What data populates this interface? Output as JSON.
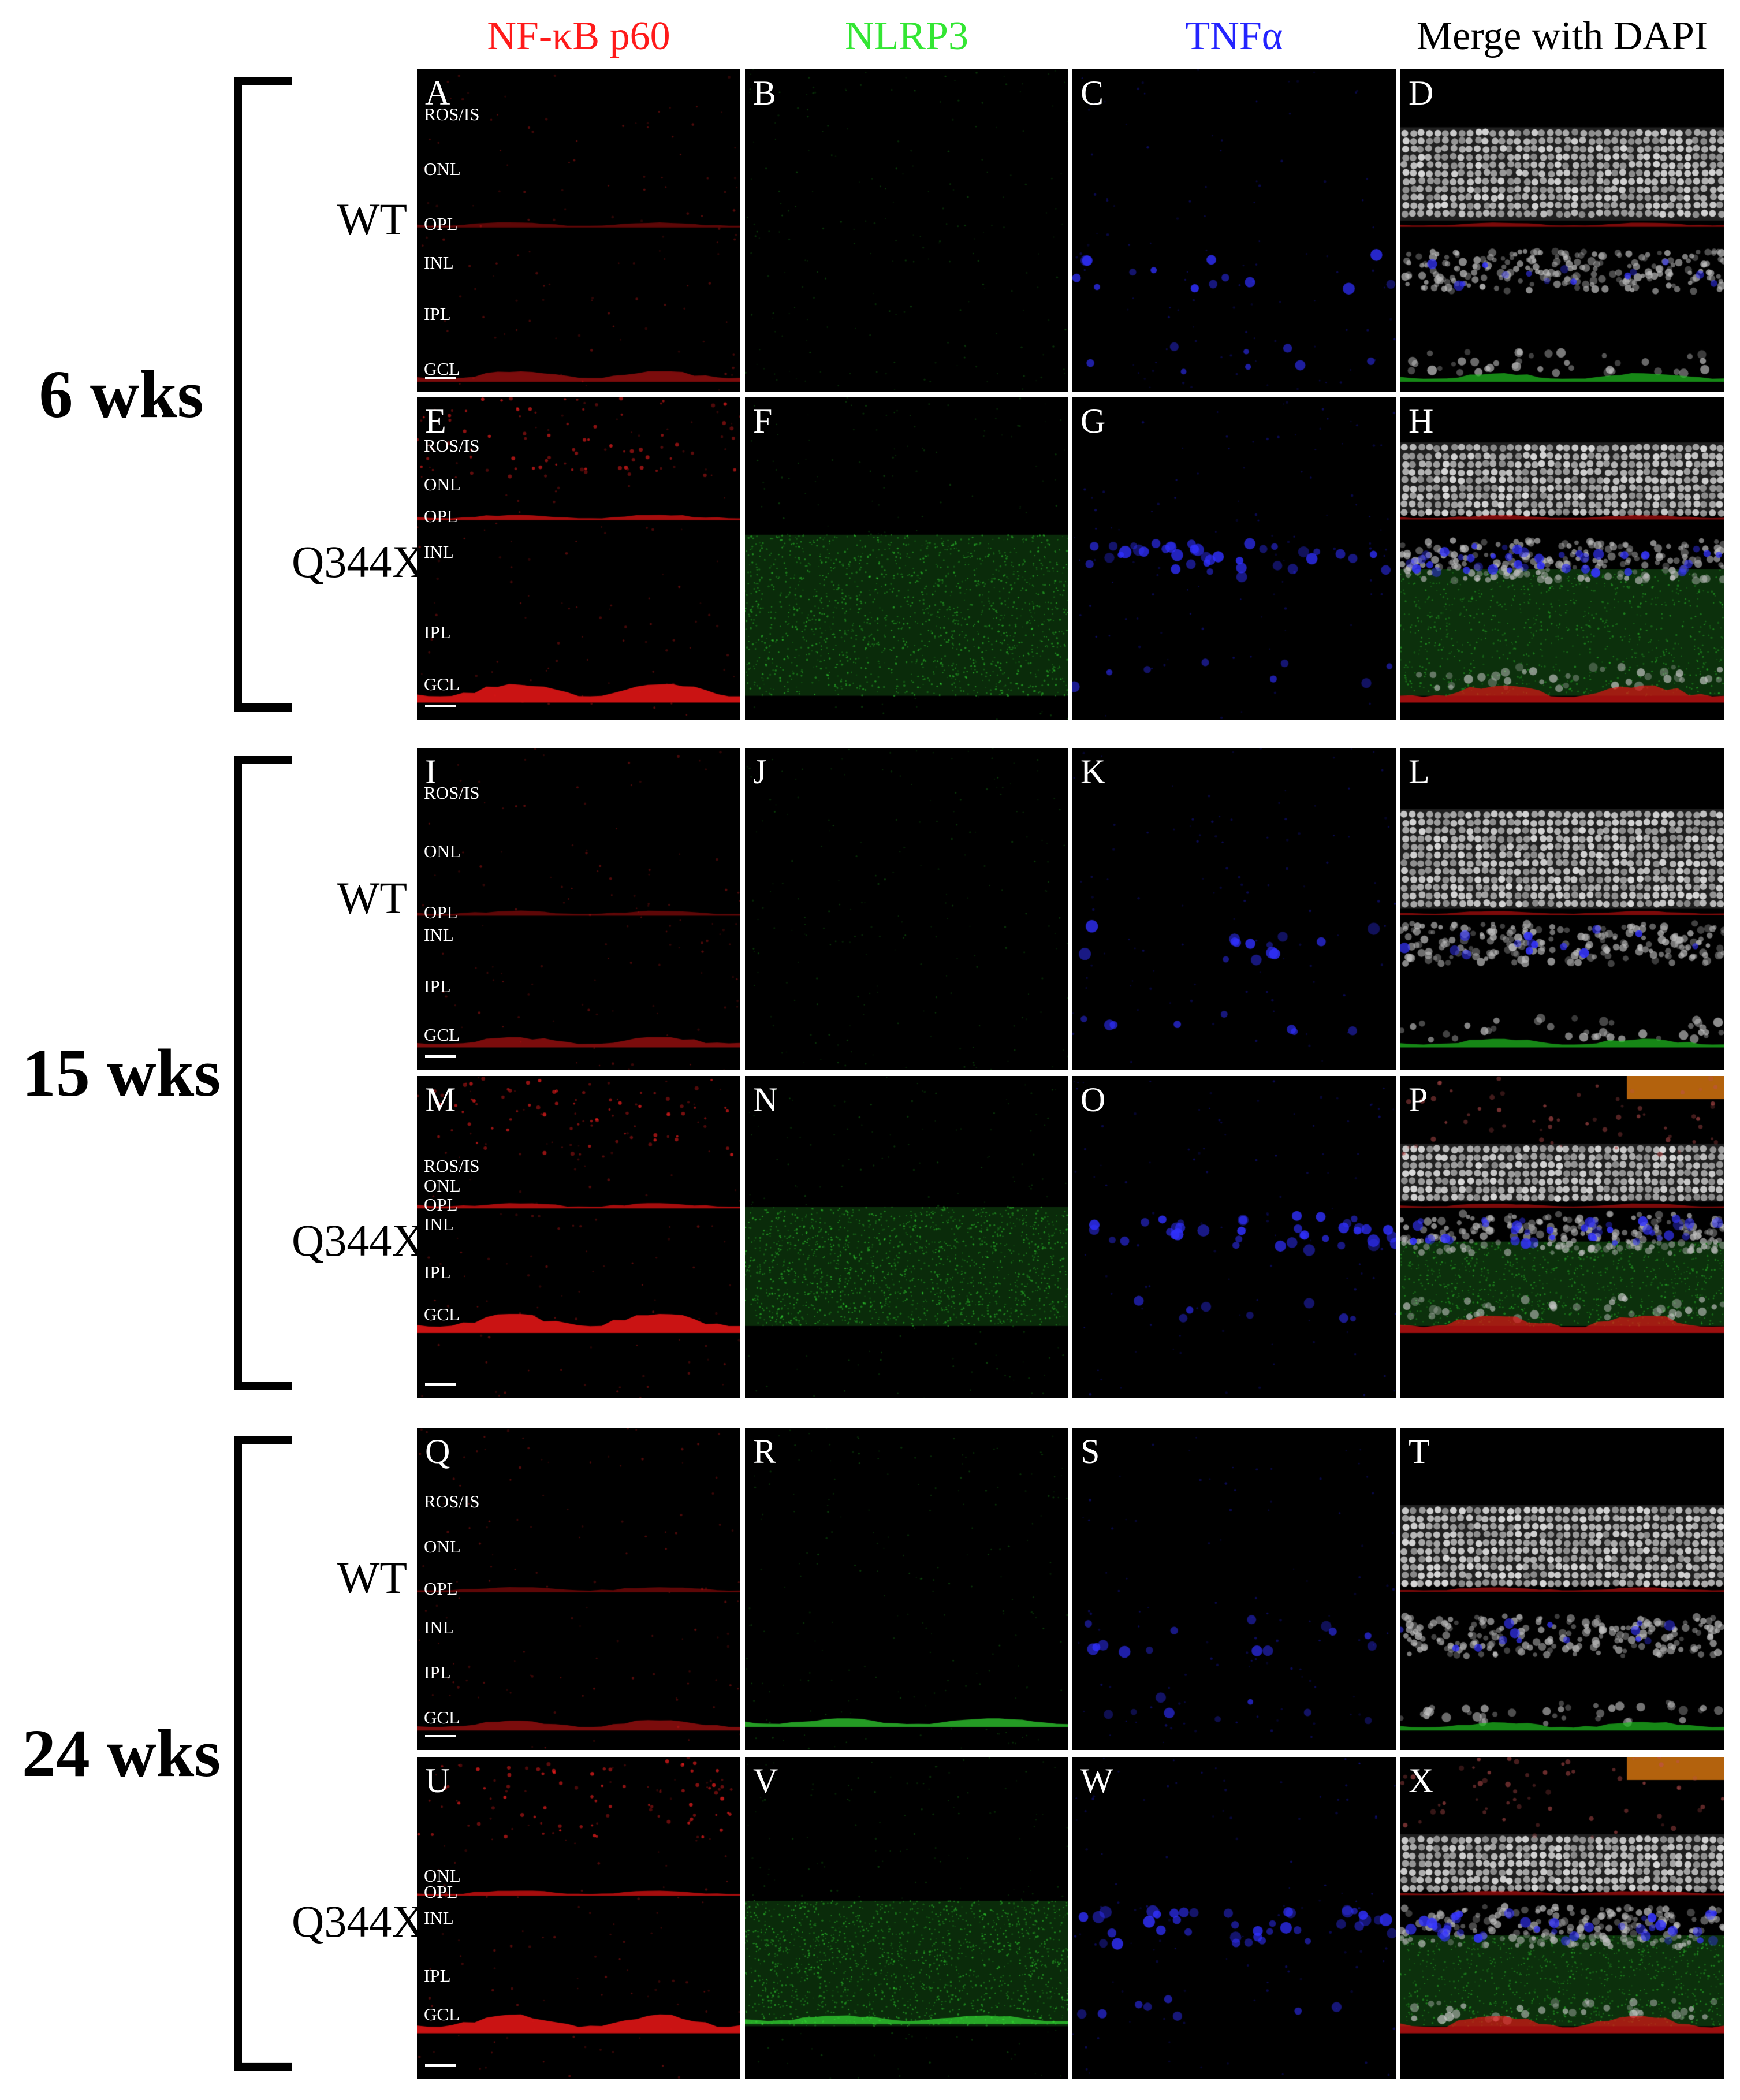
{
  "columns": [
    {
      "label": "NF-κB p60",
      "color": "#ff1a1a"
    },
    {
      "label": "NLRP3",
      "color": "#33e633"
    },
    {
      "label": "TNFα",
      "color": "#2424ff"
    },
    {
      "label": "Merge with DAPI",
      "color": "#000000"
    }
  ],
  "time_groups": [
    {
      "label": "6 wks",
      "rows": [
        {
          "label": "WT",
          "layers": [
            {
              "name": "ROS/IS",
              "pos": 0.14
            },
            {
              "name": "ONL",
              "pos": 0.31
            },
            {
              "name": "OPL",
              "pos": 0.48
            },
            {
              "name": "INL",
              "pos": 0.6
            },
            {
              "name": "IPL",
              "pos": 0.76
            },
            {
              "name": "GCL",
              "pos": 0.93
            }
          ],
          "panels": [
            "A",
            "B",
            "C",
            "D"
          ]
        },
        {
          "label": "Q344X",
          "layers": [
            {
              "name": "ROS/IS",
              "pos": 0.15
            },
            {
              "name": "ONL",
              "pos": 0.27
            },
            {
              "name": "OPL",
              "pos": 0.37
            },
            {
              "name": "INL",
              "pos": 0.48
            },
            {
              "name": "IPL",
              "pos": 0.73
            },
            {
              "name": "GCL",
              "pos": 0.89
            }
          ],
          "panels": [
            "E",
            "F",
            "G",
            "H"
          ]
        }
      ]
    },
    {
      "label": "15 wks",
      "rows": [
        {
          "label": "WT",
          "layers": [
            {
              "name": "ROS/IS",
              "pos": 0.14
            },
            {
              "name": "ONL",
              "pos": 0.32
            },
            {
              "name": "OPL",
              "pos": 0.51
            },
            {
              "name": "INL",
              "pos": 0.58
            },
            {
              "name": "IPL",
              "pos": 0.74
            },
            {
              "name": "GCL",
              "pos": 0.89
            }
          ],
          "panels": [
            "I",
            "J",
            "K",
            "L"
          ]
        },
        {
          "label": "Q344X",
          "layers": [
            {
              "name": "ROS/IS",
              "pos": 0.28
            },
            {
              "name": "ONL",
              "pos": 0.34
            },
            {
              "name": "OPL",
              "pos": 0.4
            },
            {
              "name": "INL",
              "pos": 0.46
            },
            {
              "name": "IPL",
              "pos": 0.61
            },
            {
              "name": "GCL",
              "pos": 0.74
            }
          ],
          "panels": [
            "M",
            "N",
            "O",
            "P"
          ]
        }
      ]
    },
    {
      "label": "24 wks",
      "rows": [
        {
          "label": "WT",
          "layers": [
            {
              "name": "ROS/IS",
              "pos": 0.23
            },
            {
              "name": "ONL",
              "pos": 0.37
            },
            {
              "name": "OPL",
              "pos": 0.5
            },
            {
              "name": "INL",
              "pos": 0.62
            },
            {
              "name": "IPL",
              "pos": 0.76
            },
            {
              "name": "GCL",
              "pos": 0.9
            }
          ],
          "panels": [
            "Q",
            "R",
            "S",
            "T"
          ]
        },
        {
          "label": "Q344X",
          "layers": [
            {
              "name": "ONL",
              "pos": 0.37
            },
            {
              "name": "OPL",
              "pos": 0.42
            },
            {
              "name": "INL",
              "pos": 0.5
            },
            {
              "name": "IPL",
              "pos": 0.68
            },
            {
              "name": "GCL",
              "pos": 0.8
            }
          ],
          "panels": [
            "U",
            "V",
            "W",
            "X"
          ]
        }
      ]
    }
  ]
}
